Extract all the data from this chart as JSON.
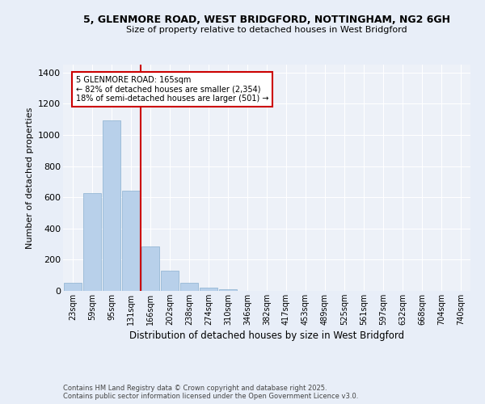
{
  "title_line1": "5, GLENMORE ROAD, WEST BRIDGFORD, NOTTINGHAM, NG2 6GH",
  "title_line2": "Size of property relative to detached houses in West Bridgford",
  "xlabel": "Distribution of detached houses by size in West Bridgford",
  "ylabel": "Number of detached properties",
  "footer_line1": "Contains HM Land Registry data © Crown copyright and database right 2025.",
  "footer_line2": "Contains public sector information licensed under the Open Government Licence v3.0.",
  "annotation_line1": "5 GLENMORE ROAD: 165sqm",
  "annotation_line2": "← 82% of detached houses are smaller (2,354)",
  "annotation_line3": "18% of semi-detached houses are larger (501) →",
  "bar_labels": [
    "23sqm",
    "59sqm",
    "95sqm",
    "131sqm",
    "166sqm",
    "202sqm",
    "238sqm",
    "274sqm",
    "310sqm",
    "346sqm",
    "382sqm",
    "417sqm",
    "453sqm",
    "489sqm",
    "525sqm",
    "561sqm",
    "597sqm",
    "632sqm",
    "668sqm",
    "704sqm",
    "740sqm"
  ],
  "bar_values": [
    50,
    625,
    1095,
    640,
    285,
    130,
    50,
    20,
    10,
    0,
    0,
    0,
    0,
    0,
    0,
    0,
    0,
    0,
    0,
    0,
    0
  ],
  "bar_color": "#b8d0ea",
  "bar_edge_color": "#8ab0d0",
  "background_color": "#e8eef8",
  "plot_background_color": "#edf1f8",
  "grid_color": "#ffffff",
  "vline_color": "#cc0000",
  "vline_pos": 3.5,
  "ylim": [
    0,
    1450
  ],
  "yticks": [
    0,
    200,
    400,
    600,
    800,
    1000,
    1200,
    1400
  ]
}
